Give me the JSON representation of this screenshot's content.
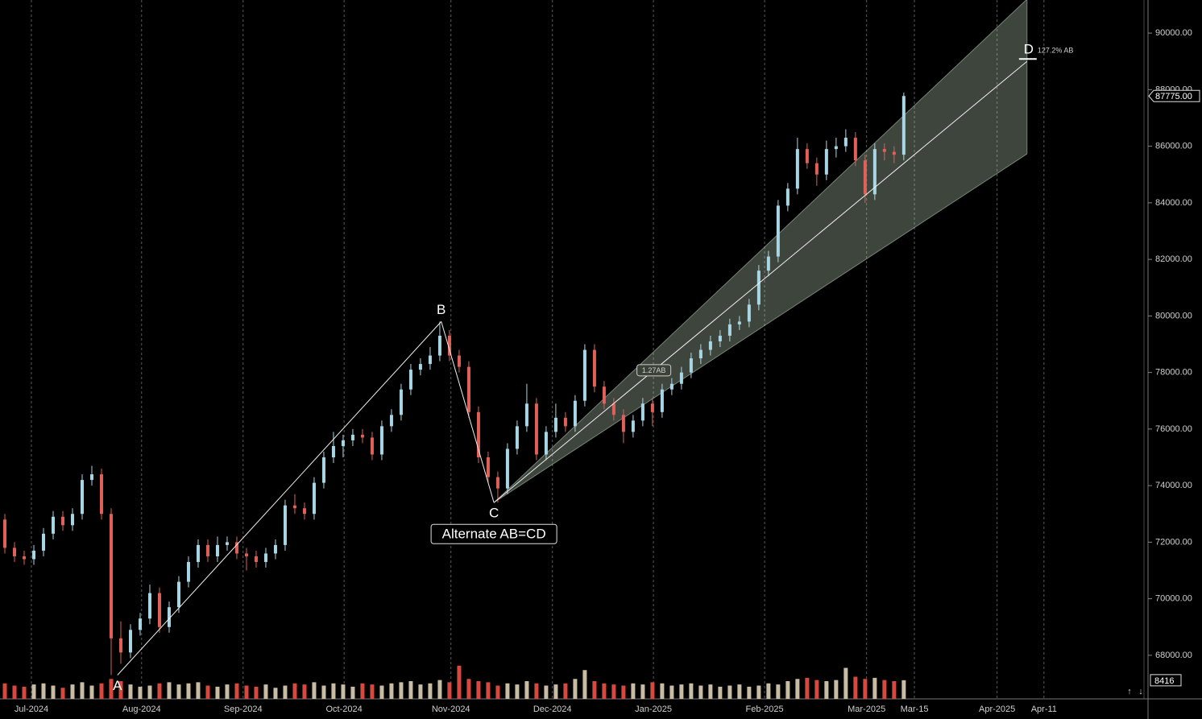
{
  "chart_data": {
    "type": "candlestick",
    "x": [
      1,
      3,
      5,
      7,
      9,
      11,
      13,
      15,
      17,
      19,
      21,
      23,
      25,
      27,
      29,
      31,
      33,
      35,
      37,
      39,
      41,
      43,
      45,
      47,
      49,
      51,
      53,
      55,
      57,
      59,
      61,
      63,
      65,
      67,
      69,
      71,
      73,
      75,
      77,
      79,
      81,
      83,
      85,
      87,
      89,
      91,
      93,
      95,
      97,
      99,
      101,
      103,
      105,
      107,
      109,
      111,
      113,
      115,
      117,
      119,
      121,
      123,
      125,
      127,
      129,
      131,
      133,
      135,
      137,
      139,
      141,
      143,
      145,
      147,
      149,
      151,
      153,
      155,
      157,
      159,
      161,
      163,
      165,
      167,
      169,
      171,
      173,
      175,
      177,
      179,
      181,
      183,
      185,
      187
    ],
    "open": [
      72800,
      71800,
      71500,
      71400,
      71700,
      72300,
      72900,
      72600,
      73000,
      74200,
      74400,
      73000,
      68600,
      68100,
      68900,
      69300,
      70200,
      69000,
      69700,
      70600,
      71300,
      71900,
      71500,
      71900,
      72000,
      71600,
      71500,
      71300,
      71600,
      71900,
      73300,
      73200,
      73000,
      74100,
      75000,
      75400,
      75600,
      75800,
      75700,
      75100,
      76100,
      76500,
      77400,
      78100,
      78300,
      78600,
      79300,
      78600,
      78200,
      76600,
      75000,
      74300,
      73900,
      75300,
      76100,
      76900,
      75100,
      75900,
      76400,
      76100,
      77000,
      78800,
      77500,
      76900,
      76500,
      75900,
      76300,
      76900,
      76600,
      77400,
      77600,
      78000,
      78500,
      78800,
      79100,
      79300,
      79700,
      79800,
      80400,
      81600,
      82100,
      83900,
      84500,
      85900,
      85400,
      85000,
      85900,
      86000,
      86300,
      85500,
      84300,
      85900,
      85800,
      85700
    ],
    "high": [
      73000,
      72000,
      71700,
      71900,
      72500,
      73100,
      73100,
      73200,
      74400,
      74700,
      74600,
      73200,
      69200,
      69100,
      69500,
      70500,
      70400,
      69900,
      70800,
      71500,
      72100,
      72100,
      72200,
      72200,
      72200,
      71800,
      71700,
      71800,
      72100,
      73500,
      73700,
      73400,
      74300,
      75200,
      75900,
      75800,
      76000,
      76000,
      75900,
      76300,
      76700,
      77600,
      78300,
      78500,
      78900,
      79800,
      79500,
      78800,
      78400,
      76800,
      75200,
      74500,
      75500,
      76300,
      77600,
      77100,
      76100,
      76900,
      76600,
      77200,
      79000,
      79000,
      77700,
      77100,
      76700,
      76500,
      77100,
      77100,
      77600,
      77800,
      78200,
      78700,
      79000,
      79300,
      79500,
      79900,
      80000,
      80600,
      81800,
      82300,
      84100,
      84700,
      86300,
      86100,
      85600,
      86200,
      86300,
      86600,
      86500,
      85700,
      86100,
      86100,
      86000,
      87900
    ],
    "low": [
      71600,
      71300,
      71200,
      71200,
      71500,
      72100,
      72400,
      72400,
      72800,
      74000,
      72800,
      67300,
      67700,
      67900,
      68700,
      69100,
      68800,
      68800,
      69500,
      70400,
      71100,
      71300,
      71300,
      71700,
      71400,
      71000,
      71100,
      71100,
      71400,
      71700,
      73000,
      72800,
      72800,
      73900,
      74800,
      75000,
      75400,
      75500,
      74900,
      74900,
      75900,
      76300,
      77200,
      77900,
      78100,
      78400,
      78400,
      78000,
      76400,
      74800,
      74100,
      73400,
      73700,
      75100,
      75900,
      74900,
      74900,
      75700,
      75900,
      75900,
      76800,
      77300,
      76700,
      76300,
      75500,
      75700,
      76100,
      76100,
      76400,
      77200,
      77400,
      77800,
      78300,
      78600,
      78900,
      79100,
      79500,
      79600,
      80200,
      81400,
      81900,
      83700,
      84300,
      85200,
      84600,
      84800,
      85600,
      85800,
      85300,
      84000,
      84100,
      85500,
      85400,
      85500
    ],
    "close": [
      71800,
      71500,
      71400,
      71700,
      72300,
      72900,
      72600,
      73000,
      74200,
      74400,
      73000,
      68600,
      68100,
      68900,
      69300,
      70200,
      69000,
      69700,
      70600,
      71300,
      71900,
      71500,
      71900,
      72000,
      71600,
      71500,
      71300,
      71600,
      71900,
      73300,
      73200,
      73000,
      74100,
      75000,
      75400,
      75600,
      75800,
      75700,
      75100,
      76100,
      76500,
      77400,
      78100,
      78300,
      78600,
      79300,
      78600,
      78200,
      76600,
      75000,
      74300,
      73900,
      75300,
      76100,
      76900,
      75100,
      75900,
      76400,
      76100,
      77000,
      78800,
      77500,
      76900,
      76500,
      75900,
      76300,
      76900,
      76600,
      77400,
      77600,
      78000,
      78500,
      78800,
      79100,
      79300,
      79700,
      79800,
      80400,
      81600,
      82100,
      83900,
      84500,
      85900,
      85400,
      85000,
      85900,
      86000,
      86300,
      85500,
      84300,
      85900,
      85800,
      85700,
      87775
    ],
    "volume": [
      7000,
      6000,
      5500,
      6500,
      7000,
      6000,
      5000,
      6500,
      7500,
      6000,
      7000,
      9000,
      8000,
      6500,
      5500,
      6000,
      7000,
      7500,
      6500,
      7000,
      7500,
      6000,
      5500,
      6500,
      7000,
      6000,
      5500,
      6500,
      5000,
      6000,
      7000,
      6500,
      7500,
      6000,
      7000,
      6500,
      5500,
      7000,
      6500,
      6000,
      7000,
      7500,
      8000,
      6500,
      7000,
      8500,
      7500,
      15000,
      9000,
      8000,
      7500,
      6000,
      7000,
      6500,
      8000,
      7000,
      6000,
      6500,
      7000,
      9000,
      13000,
      8000,
      7000,
      6500,
      6000,
      7000,
      6500,
      7500,
      7000,
      6000,
      6500,
      7000,
      6000,
      6500,
      5500,
      6000,
      6500,
      5500,
      6000,
      7000,
      6500,
      8000,
      9000,
      9500,
      8500,
      8000,
      8500,
      14000,
      10000,
      9000,
      9500,
      8500,
      8000,
      8416
    ],
    "up_color": "#a9d6e5",
    "down_color": "#e0605a",
    "volume_up_color": "#c8bda3",
    "volume_down_color": "#d9473d",
    "xlim": [
      0,
      236.7
    ],
    "xticks": [
      {
        "value": 6.5,
        "label": "Jul-2024"
      },
      {
        "value": 29.3,
        "label": "Aug-2024"
      },
      {
        "value": 50.3,
        "label": "Sep-2024"
      },
      {
        "value": 71.2,
        "label": "Oct-2024"
      },
      {
        "value": 93.3,
        "label": "Nov-2024"
      },
      {
        "value": 114.3,
        "label": "Dec-2024"
      },
      {
        "value": 135.2,
        "label": "Jan-2025"
      },
      {
        "value": 158.2,
        "label": "Feb-2025"
      },
      {
        "value": 179.3,
        "label": "Mar-2025"
      },
      {
        "value": 189.2,
        "label": "Mar-15"
      },
      {
        "value": 206.3,
        "label": "Apr-2025"
      },
      {
        "value": 216,
        "label": "Apr-11"
      }
    ],
    "ylim": [
      66460,
      91170
    ],
    "yticks": [
      {
        "value": 68000,
        "label": "68000.00"
      },
      {
        "value": 70000,
        "label": "70000.00"
      },
      {
        "value": 72000,
        "label": "72000.00"
      },
      {
        "value": 74000,
        "label": "74000.00"
      },
      {
        "value": 76000,
        "label": "76000.00"
      },
      {
        "value": 78000,
        "label": "78000.00"
      },
      {
        "value": 80000,
        "label": "80000.00"
      },
      {
        "value": 82000,
        "label": "82000.00"
      },
      {
        "value": 84000,
        "label": "84000.00"
      },
      {
        "value": 86000,
        "label": "86000.00"
      },
      {
        "value": 88000,
        "label": "88000.00"
      },
      {
        "value": 90000,
        "label": "90000.00"
      }
    ],
    "vlim": [
      0,
      20000
    ],
    "grid": true,
    "last_price": {
      "value": 87775,
      "label": "87775.00"
    },
    "last_volume": {
      "value": 8416,
      "label": "8416"
    },
    "pattern": {
      "name": "Alternate AB=CD",
      "points": [
        {
          "label": "A",
          "x": 24.3,
          "y": 67300
        },
        {
          "label": "B",
          "x": 91.3,
          "y": 79800
        },
        {
          "label": "C",
          "x": 102.2,
          "y": 73400
        },
        {
          "label": "D",
          "x": 212.5,
          "y": 89000
        }
      ],
      "projection_label": "1.27AB",
      "target_label": "127.2% AB",
      "fan": {
        "x": [
          102.2,
          212.5
        ],
        "upper": [
          73400,
          91200
        ],
        "lower": [
          73400,
          85730
        ]
      }
    }
  }
}
